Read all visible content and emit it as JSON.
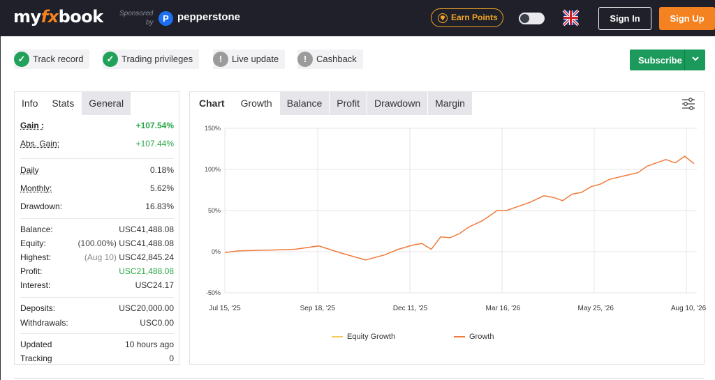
{
  "header": {
    "logo_my": "my",
    "logo_fx": "fx",
    "logo_book": "book",
    "sponsored": "Sponsored",
    "by": "by",
    "sponsor_name": "pepperstone",
    "sponsor_icon": "P",
    "earn_points": "Earn Points",
    "sign_in": "Sign In",
    "sign_up": "Sign Up"
  },
  "badges": [
    {
      "label": "Track record",
      "status": "ok"
    },
    {
      "label": "Trading privileges",
      "status": "ok"
    },
    {
      "label": "Live update",
      "status": "warn"
    },
    {
      "label": "Cashback",
      "status": "warn"
    }
  ],
  "subscribe": {
    "label": "Subscribe"
  },
  "left_tabs": [
    "Info",
    "Stats",
    "General"
  ],
  "stats": {
    "gain_label": "Gain :",
    "gain": "+107.54%",
    "abs_gain_label": "Abs. Gain:",
    "abs_gain": "+107.44%",
    "daily_label": "Daily",
    "daily": "0.18%",
    "monthly_label": "Monthly:",
    "monthly": "5.62%",
    "drawdown_label": "Drawdown:",
    "drawdown": "16.83%",
    "balance_label": "Balance:",
    "balance": "USC41,488.08",
    "equity_label": "Equity:",
    "equity_pct": "(100.00%)",
    "equity": "USC41,488.08",
    "highest_label": "Highest:",
    "highest_date": "(Aug 10)",
    "highest": "USC42,845.24",
    "profit_label": "Profit:",
    "profit": "USC21,488.08",
    "interest_label": "Interest:",
    "interest": "USC24.17",
    "deposits_label": "Deposits:",
    "deposits": "USC20,000.00",
    "withdrawals_label": "Withdrawals:",
    "withdrawals": "USC0.00",
    "updated_label": "Updated",
    "updated": "10 hours ago",
    "tracking_label": "Tracking",
    "tracking": "0"
  },
  "chart_tabs": [
    "Chart",
    "Growth",
    "Balance",
    "Profit",
    "Drawdown",
    "Margin"
  ],
  "chart_data": {
    "type": "line",
    "title": "",
    "xlabel": "",
    "ylabel": "",
    "ylim": [
      -50,
      150
    ],
    "yticks": [
      "150%",
      "100%",
      "50%",
      "0%",
      "-50%"
    ],
    "ytick_values": [
      150,
      100,
      50,
      0,
      -50
    ],
    "xticks": [
      "Jul 15, '25",
      "Sep 18, '25",
      "Dec 11, '25",
      "Mar 16, '26",
      "May 25, '26",
      "Aug 10, '26"
    ],
    "series": [
      {
        "name": "Equity Growth",
        "color": "#f5c85a",
        "values": []
      },
      {
        "name": "Growth",
        "color": "#f07a3a",
        "x": [
          0,
          3,
          6,
          10,
          15,
          20,
          25,
          30,
          34,
          37,
          40,
          42,
          44,
          46,
          48,
          50,
          52,
          55,
          58,
          60,
          62,
          65,
          68,
          70,
          72,
          74,
          76,
          78,
          80,
          82,
          85,
          88,
          90,
          92,
          94,
          96,
          98,
          100
        ],
        "values": [
          -1,
          1,
          1.5,
          2,
          3,
          7,
          -2,
          -10,
          -4,
          3,
          8,
          10,
          3,
          18,
          17,
          22,
          30,
          38,
          50,
          50,
          54,
          60,
          68,
          66,
          62,
          70,
          72,
          79,
          82,
          88,
          92,
          96,
          104,
          108,
          112,
          108,
          116,
          107
        ]
      }
    ],
    "legend": "bottom",
    "grid": true
  }
}
